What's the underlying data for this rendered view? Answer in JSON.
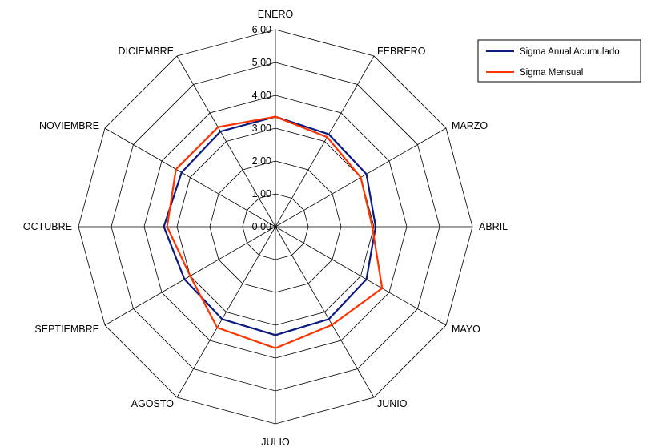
{
  "chart_data": {
    "type": "radar",
    "title": "",
    "categories": [
      "ENERO",
      "FEBRERO",
      "MARZO",
      "ABRIL",
      "MAYO",
      "JUNIO",
      "JULIO",
      "AGOSTO",
      "SEPTIEMBRE",
      "OCTUBRE",
      "NOVIEMBRE",
      "DICIEMBRE"
    ],
    "tick_labels": [
      "0,00",
      "1,00",
      "2,00",
      "3,00",
      "4,00",
      "5,00",
      "6,00"
    ],
    "rmin": 0,
    "rmax": 6,
    "grid": true,
    "legend_position": "top-right",
    "series": [
      {
        "name": "Sigma Anual Acumulado",
        "color": "#0a1a80",
        "values": [
          3.35,
          3.25,
          3.2,
          3.05,
          3.2,
          3.25,
          3.3,
          3.25,
          3.2,
          3.4,
          3.3,
          3.35
        ]
      },
      {
        "name": "Sigma Mensual",
        "color": "#ff3300",
        "values": [
          3.35,
          3.15,
          3.0,
          2.95,
          3.75,
          3.45,
          3.7,
          3.55,
          3.0,
          3.3,
          3.5,
          3.5
        ]
      }
    ]
  }
}
